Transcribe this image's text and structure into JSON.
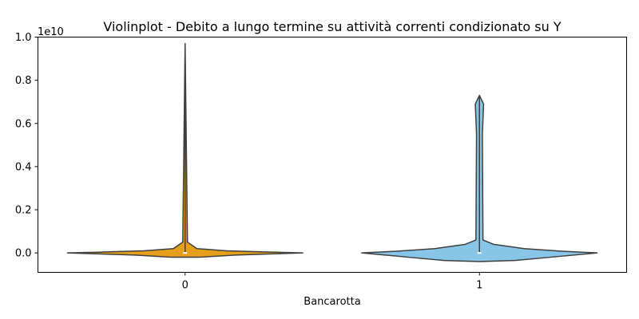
{
  "chart_data": {
    "type": "violin",
    "title": "Violinplot - Debito a lungo termine su attività correnti condizionato su Y",
    "xlabel": "Bancarotta",
    "ylabel": "",
    "y_offset_label": "1e10",
    "ylim": [
      -0.09,
      1.0
    ],
    "y_ticks": [
      0.0,
      0.2,
      0.4,
      0.6,
      0.8,
      1.0
    ],
    "y_tick_labels": [
      "0.0",
      "0.2",
      "0.4",
      "0.6",
      "0.8",
      "1.0"
    ],
    "categories": [
      "0",
      "1"
    ],
    "series": [
      {
        "category": "0",
        "color": "#E69F1B",
        "max": 0.97,
        "median": 0.0,
        "profile": [
          [
            -0.02,
            0.12
          ],
          [
            -0.01,
            0.42
          ],
          [
            0.0,
            1.0
          ],
          [
            0.004,
            0.7
          ],
          [
            0.01,
            0.35
          ],
          [
            0.02,
            0.1
          ],
          [
            0.05,
            0.02
          ],
          [
            0.97,
            0.0
          ]
        ]
      },
      {
        "category": "1",
        "color": "#87C6E6",
        "max": 0.73,
        "median": 0.0,
        "profile": [
          [
            -0.04,
            0.0
          ],
          [
            -0.035,
            0.3
          ],
          [
            -0.02,
            0.6
          ],
          [
            0.0,
            1.0
          ],
          [
            0.008,
            0.7
          ],
          [
            0.02,
            0.38
          ],
          [
            0.04,
            0.12
          ],
          [
            0.06,
            0.03
          ],
          [
            0.53,
            0.025
          ],
          [
            0.55,
            0.025
          ],
          [
            0.69,
            0.035
          ],
          [
            0.73,
            0.0
          ]
        ]
      }
    ],
    "grid": false,
    "legend": "none"
  }
}
